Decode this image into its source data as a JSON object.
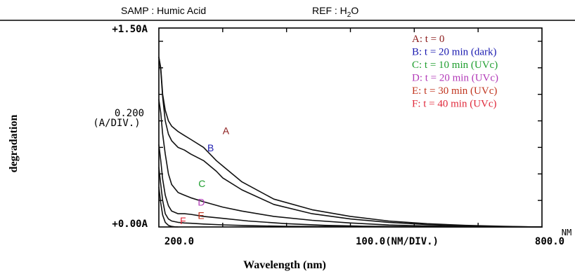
{
  "header": {
    "samp_label": "SAMP : Humic Acid",
    "ref_label": "REF : H",
    "ref_sub": "2",
    "ref_tail": "O"
  },
  "chart_data": {
    "type": "line",
    "title": "",
    "xlabel": "Wavelength (nm)",
    "ylabel": "degradation",
    "x_axis": {
      "tick_left": "200.0",
      "tick_mid": "100.0(NM/DIV.)",
      "tick_right": "800.0",
      "unit": "NM",
      "xlim": [
        200,
        800
      ]
    },
    "y_axis": {
      "tick_top": "+1.50A",
      "scale_line1": "0.200",
      "scale_line2": "(A/DIV.)",
      "tick_bottom": "+0.00A",
      "ylim": [
        0.0,
        1.5
      ]
    },
    "legend_placement": "top-right",
    "series": [
      {
        "name": "A: t = 0",
        "label": "A",
        "color": "#8b1a1a",
        "x": [
          200,
          203,
          206,
          210,
          215,
          220,
          230,
          240,
          250,
          270,
          290,
          300,
          330,
          380,
          440,
          500,
          560,
          620,
          680,
          740,
          800
        ],
        "y": [
          1.28,
          1.2,
          1.0,
          0.88,
          0.8,
          0.76,
          0.72,
          0.69,
          0.66,
          0.6,
          0.5,
          0.46,
          0.34,
          0.21,
          0.13,
          0.08,
          0.045,
          0.025,
          0.012,
          0.005,
          0.0
        ]
      },
      {
        "name": "B: t = 20 min (dark)",
        "label": "B",
        "color": "#1a1ab0",
        "x": [
          200,
          203,
          206,
          210,
          215,
          220,
          230,
          240,
          250,
          270,
          290,
          300,
          330,
          380,
          440,
          500,
          560,
          620,
          680,
          740,
          800
        ],
        "y": [
          1.28,
          1.18,
          0.98,
          0.8,
          0.7,
          0.65,
          0.6,
          0.58,
          0.55,
          0.5,
          0.42,
          0.37,
          0.28,
          0.17,
          0.1,
          0.06,
          0.035,
          0.018,
          0.008,
          0.003,
          0.0
        ]
      },
      {
        "name": "C: t = 10 min (UVc)",
        "label": "C",
        "color": "#1f9e2f",
        "x": [
          200,
          203,
          206,
          210,
          215,
          220,
          230,
          240,
          250,
          270,
          300,
          330,
          380,
          440,
          500,
          560,
          620,
          680,
          740,
          800
        ],
        "y": [
          0.96,
          0.86,
          0.7,
          0.55,
          0.4,
          0.32,
          0.26,
          0.24,
          0.22,
          0.19,
          0.15,
          0.12,
          0.08,
          0.05,
          0.03,
          0.015,
          0.008,
          0.004,
          0.001,
          0.0
        ]
      },
      {
        "name": "D: t = 20 min (UVc)",
        "label": "D",
        "color": "#b23ab8",
        "x": [
          200,
          203,
          206,
          210,
          215,
          220,
          230,
          240,
          250,
          270,
          300,
          340,
          400,
          460,
          520,
          600,
          700,
          800
        ],
        "y": [
          0.62,
          0.5,
          0.36,
          0.24,
          0.16,
          0.12,
          0.1,
          0.1,
          0.095,
          0.08,
          0.065,
          0.045,
          0.025,
          0.012,
          0.006,
          0.002,
          0.0,
          0.0
        ]
      },
      {
        "name": "E: t = 30 min (UVc)",
        "label": "E",
        "color": "#c0341d",
        "x": [
          200,
          203,
          206,
          210,
          215,
          220,
          230,
          240,
          250,
          270,
          300,
          340,
          400,
          500,
          600,
          700,
          800
        ],
        "y": [
          0.45,
          0.32,
          0.2,
          0.1,
          0.06,
          0.045,
          0.035,
          0.03,
          0.028,
          0.022,
          0.016,
          0.01,
          0.005,
          0.002,
          0.0,
          0.0,
          0.0
        ]
      },
      {
        "name": "F: t = 40 min (UVc)",
        "label": "F",
        "color": "#e0283a",
        "x": [
          200,
          203,
          206,
          210,
          215,
          220,
          225,
          230
        ],
        "y": [
          0.3,
          0.18,
          0.09,
          0.035,
          0.012,
          0.004,
          0.001,
          0.0
        ]
      }
    ]
  }
}
